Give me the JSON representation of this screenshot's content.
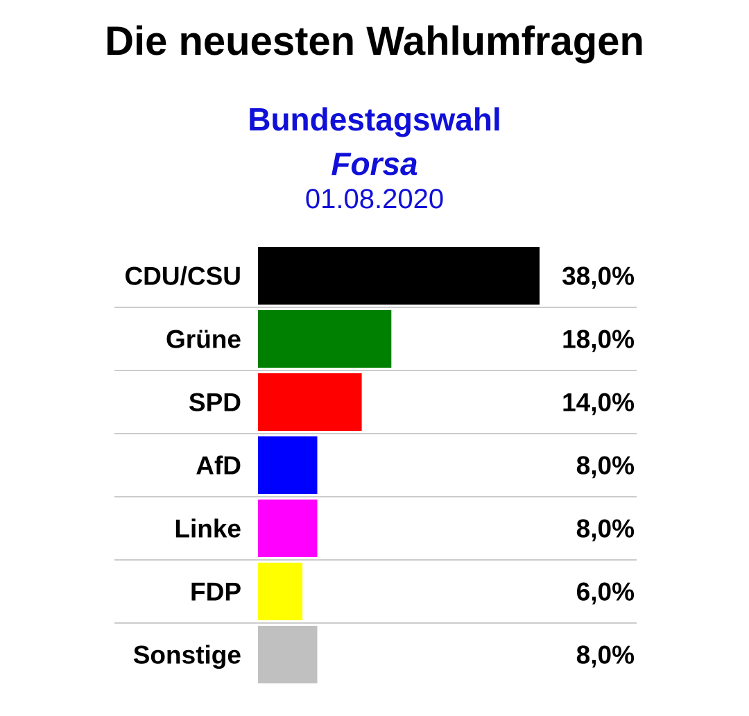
{
  "header": {
    "title": "Die neuesten Wahlumfragen",
    "election": "Bundestagswahl",
    "institute": "Forsa",
    "date": "01.08.2020",
    "subtitle_color": "#1010d8"
  },
  "chart_data": {
    "type": "bar",
    "orientation": "horizontal",
    "categories": [
      "CDU/CSU",
      "Grüne",
      "SPD",
      "AfD",
      "Linke",
      "FDP",
      "Sonstige"
    ],
    "values": [
      38.0,
      18.0,
      14.0,
      8.0,
      8.0,
      6.0,
      8.0
    ],
    "value_labels": [
      "38,0%",
      "18,0%",
      "14,0%",
      "8,0%",
      "8,0%",
      "6,0%",
      "8,0%"
    ],
    "colors": [
      "#000000",
      "#008000",
      "#ff0000",
      "#0000ff",
      "#ff00ff",
      "#ffff00",
      "#c0c0c0"
    ],
    "xlim": [
      0,
      38.0
    ],
    "grid": false,
    "separator_color": "#cccccc"
  }
}
